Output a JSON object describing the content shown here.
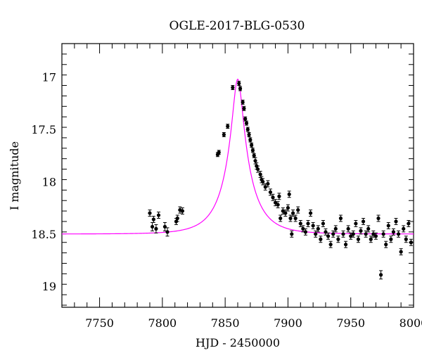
{
  "chart_data": {
    "type": "scatter",
    "title": "OGLE-2017-BLG-0530",
    "xlabel": "HJD - 2450000",
    "ylabel": "I magnitude",
    "xlim": [
      7720,
      8000
    ],
    "ylim": [
      19.2,
      16.68
    ],
    "y_inverted": true,
    "x_ticks": [
      7750,
      7800,
      7850,
      7900,
      7950,
      8000
    ],
    "y_ticks": [
      17,
      17.5,
      18,
      18.5,
      19
    ],
    "x_tick_labels": [
      "7750",
      "7800",
      "7850",
      "7900",
      "7950",
      "8000"
    ],
    "y_tick_labels": [
      "17",
      "17.5",
      "18",
      "18.5",
      "19"
    ],
    "grid": false,
    "colors": {
      "points": "#000000",
      "model": "#ff00ff",
      "frame": "#000000"
    },
    "model": {
      "name": "",
      "baseline_mag": 18.5,
      "peak_mag": 17.02,
      "t0": 7860,
      "u0": 0.175,
      "tE": 22
    },
    "series": [
      {
        "name": "",
        "marker": "filled-circle-with-errorbar",
        "points": [
          [
            7790,
            18.3,
            0.03
          ],
          [
            7792,
            18.43,
            0.04
          ],
          [
            7793,
            18.36,
            0.03
          ],
          [
            7795,
            18.45,
            0.04
          ],
          [
            7797,
            18.32,
            0.03
          ],
          [
            7802,
            18.43,
            0.04
          ],
          [
            7804,
            18.48,
            0.04
          ],
          [
            7811,
            18.38,
            0.03
          ],
          [
            7812,
            18.35,
            0.03
          ],
          [
            7814,
            18.27,
            0.03
          ],
          [
            7816,
            18.28,
            0.03
          ],
          [
            7844,
            17.74,
            0.02
          ],
          [
            7845,
            17.72,
            0.02
          ],
          [
            7849,
            17.55,
            0.02
          ],
          [
            7852,
            17.47,
            0.02
          ],
          [
            7856,
            17.1,
            0.02
          ],
          [
            7861,
            17.06,
            0.02
          ],
          [
            7862,
            17.11,
            0.02
          ],
          [
            7864,
            17.24,
            0.02
          ],
          [
            7865,
            17.3,
            0.02
          ],
          [
            7866,
            17.4,
            0.02
          ],
          [
            7867,
            17.44,
            0.02
          ],
          [
            7868,
            17.5,
            0.02
          ],
          [
            7869,
            17.55,
            0.02
          ],
          [
            7870,
            17.6,
            0.02
          ],
          [
            7871,
            17.65,
            0.02
          ],
          [
            7872,
            17.7,
            0.02
          ],
          [
            7873,
            17.75,
            0.02
          ],
          [
            7874,
            17.8,
            0.03
          ],
          [
            7875,
            17.85,
            0.03
          ],
          [
            7876,
            17.88,
            0.03
          ],
          [
            7878,
            17.93,
            0.03
          ],
          [
            7879,
            17.98,
            0.03
          ],
          [
            7880,
            18.0,
            0.03
          ],
          [
            7882,
            18.05,
            0.03
          ],
          [
            7884,
            18.02,
            0.03
          ],
          [
            7886,
            18.1,
            0.03
          ],
          [
            7888,
            18.15,
            0.03
          ],
          [
            7890,
            18.2,
            0.03
          ],
          [
            7892,
            18.22,
            0.03
          ],
          [
            7893,
            18.14,
            0.03
          ],
          [
            7894,
            18.35,
            0.03
          ],
          [
            7896,
            18.28,
            0.03
          ],
          [
            7898,
            18.3,
            0.03
          ],
          [
            7900,
            18.25,
            0.03
          ],
          [
            7901,
            18.12,
            0.03
          ],
          [
            7902,
            18.35,
            0.03
          ],
          [
            7903,
            18.5,
            0.03
          ],
          [
            7904,
            18.3,
            0.03
          ],
          [
            7906,
            18.35,
            0.03
          ],
          [
            7908,
            18.27,
            0.03
          ],
          [
            7910,
            18.4,
            0.03
          ],
          [
            7912,
            18.45,
            0.03
          ],
          [
            7914,
            18.48,
            0.03
          ],
          [
            7916,
            18.4,
            0.03
          ],
          [
            7918,
            18.3,
            0.03
          ],
          [
            7920,
            18.42,
            0.03
          ],
          [
            7922,
            18.5,
            0.03
          ],
          [
            7924,
            18.45,
            0.03
          ],
          [
            7926,
            18.55,
            0.03
          ],
          [
            7928,
            18.4,
            0.03
          ],
          [
            7930,
            18.48,
            0.03
          ],
          [
            7932,
            18.52,
            0.03
          ],
          [
            7934,
            18.6,
            0.03
          ],
          [
            7936,
            18.5,
            0.03
          ],
          [
            7938,
            18.45,
            0.03
          ],
          [
            7940,
            18.55,
            0.03
          ],
          [
            7942,
            18.35,
            0.03
          ],
          [
            7944,
            18.5,
            0.03
          ],
          [
            7946,
            18.6,
            0.03
          ],
          [
            7948,
            18.45,
            0.03
          ],
          [
            7950,
            18.52,
            0.03
          ],
          [
            7952,
            18.5,
            0.03
          ],
          [
            7954,
            18.4,
            0.03
          ],
          [
            7956,
            18.55,
            0.03
          ],
          [
            7958,
            18.47,
            0.03
          ],
          [
            7960,
            18.38,
            0.03
          ],
          [
            7962,
            18.5,
            0.03
          ],
          [
            7964,
            18.45,
            0.03
          ],
          [
            7966,
            18.55,
            0.03
          ],
          [
            7968,
            18.5,
            0.03
          ],
          [
            7970,
            18.52,
            0.03
          ],
          [
            7972,
            18.35,
            0.03
          ],
          [
            7974,
            18.89,
            0.04
          ],
          [
            7976,
            18.5,
            0.03
          ],
          [
            7978,
            18.6,
            0.03
          ],
          [
            7980,
            18.42,
            0.03
          ],
          [
            7982,
            18.55,
            0.03
          ],
          [
            7984,
            18.48,
            0.03
          ],
          [
            7986,
            18.38,
            0.03
          ],
          [
            7988,
            18.5,
            0.03
          ],
          [
            7990,
            18.67,
            0.03
          ],
          [
            7992,
            18.45,
            0.03
          ],
          [
            7994,
            18.55,
            0.03
          ],
          [
            7996,
            18.4,
            0.03
          ],
          [
            7998,
            18.58,
            0.03
          ]
        ]
      }
    ]
  }
}
